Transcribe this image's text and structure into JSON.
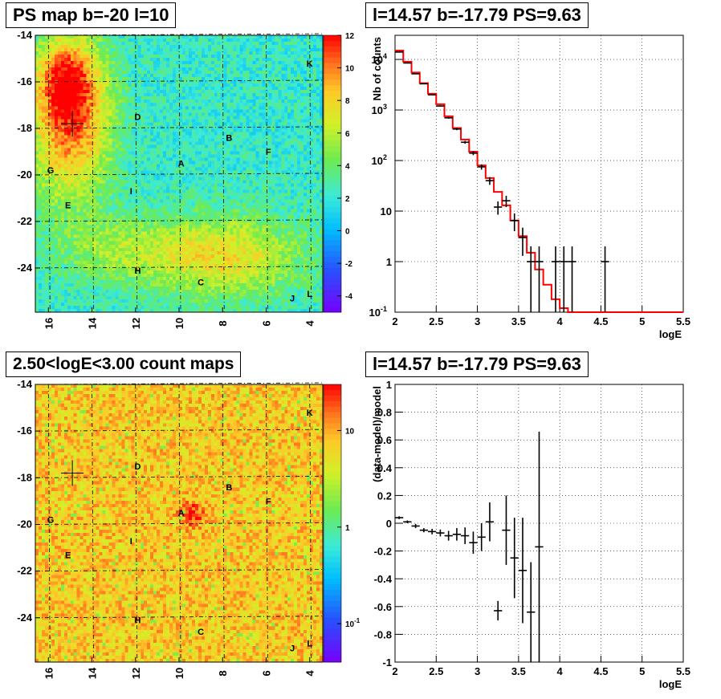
{
  "panels": {
    "ps_map_title": "PS map b=-20 l=10",
    "spectrum_title": "l=14.57 b=-17.79 PS=9.63",
    "count_map_title": "2.50<logE<3.00 count maps",
    "residual_title": "l=14.57 b=-17.79 PS=9.63"
  },
  "chart_data": [
    {
      "id": "ps_map",
      "type": "heatmap",
      "title": "PS map b=-20 l=10",
      "xlabel": "",
      "ylabel": "",
      "xlim": [
        16.6,
        3.4
      ],
      "ylim": [
        -25.9,
        -14
      ],
      "x_ticks": [
        16,
        14,
        12,
        10,
        8,
        6,
        4
      ],
      "y_ticks": [
        -14,
        -16,
        -18,
        -20,
        -22,
        -24
      ],
      "colorbar": {
        "range": [
          -5,
          12
        ],
        "ticks": [
          -4,
          -2,
          0,
          2,
          4,
          6,
          8,
          10,
          12
        ]
      },
      "marker": {
        "l": 14.9,
        "b": -17.8,
        "symbol": "+"
      },
      "labels": [
        {
          "text": "K",
          "l": 4.0,
          "b": -15.2
        },
        {
          "text": "D",
          "l": 11.9,
          "b": -17.5
        },
        {
          "text": "B",
          "l": 7.7,
          "b": -18.4
        },
        {
          "text": "F",
          "l": 5.9,
          "b": -19.0
        },
        {
          "text": "A",
          "l": 9.9,
          "b": -19.5
        },
        {
          "text": "G",
          "l": 15.9,
          "b": -19.8
        },
        {
          "text": "I",
          "l": 12.2,
          "b": -20.7
        },
        {
          "text": "E",
          "l": 15.1,
          "b": -21.3
        },
        {
          "text": "H",
          "l": 11.9,
          "b": -24.1
        },
        {
          "text": "C",
          "l": 9.0,
          "b": -24.6
        },
        {
          "text": "J",
          "l": 4.8,
          "b": -25.3
        },
        {
          "text": "L",
          "l": 4.0,
          "b": -25.1
        }
      ],
      "blobs": [
        {
          "l": 15.0,
          "b": -17.8,
          "value": 8.0,
          "sl": 1.3,
          "sb": 2.3
        },
        {
          "l": 15.2,
          "b": -15.8,
          "value": 5.5,
          "sl": 1.0,
          "sb": 1.2
        },
        {
          "l": 8.0,
          "b": -23.5,
          "value": 5.5,
          "sl": 2.6,
          "sb": 1.2
        },
        {
          "l": 13.0,
          "b": -23.2,
          "value": 2.5,
          "sl": 2.0,
          "sb": 1.0
        }
      ]
    },
    {
      "id": "spectrum",
      "type": "line",
      "title": "l=14.57 b=-17.79 PS=9.63",
      "xlabel": "logE",
      "ylabel": "Nb of counts",
      "xlim": [
        2,
        5.5
      ],
      "ylim": [
        0.1,
        30000
      ],
      "yscale": "log",
      "grid": true,
      "x_ticks": [
        2,
        2.5,
        3,
        3.5,
        4,
        4.5,
        5,
        5.5
      ],
      "y_ticks": [
        {
          "value": 0.1,
          "label": "10",
          "exp": "-1"
        },
        {
          "value": 1,
          "label": "1",
          "exp": ""
        },
        {
          "value": 10,
          "label": "10",
          "exp": ""
        },
        {
          "value": 100,
          "label": "10",
          "exp": "2"
        },
        {
          "value": 1000,
          "label": "10",
          "exp": "3"
        },
        {
          "value": 10000,
          "label": "10",
          "exp": "4"
        }
      ],
      "model": {
        "edges": [
          2,
          2.1,
          2.2,
          2.3,
          2.4,
          2.5,
          2.6,
          2.7,
          2.8,
          2.9,
          3.0,
          3.1,
          3.2,
          3.3,
          3.4,
          3.5,
          3.6,
          3.7,
          3.8,
          3.9,
          4.0,
          4.1,
          4.2,
          5.5
        ],
        "values": [
          15000,
          9000,
          5500,
          3400,
          2100,
          1300,
          750,
          440,
          260,
          150,
          80,
          45,
          24,
          13,
          6.5,
          3.2,
          1.5,
          0.7,
          0.35,
          0.18,
          0.12,
          0.1,
          0.1
        ]
      },
      "data": {
        "x": [
          2.05,
          2.15,
          2.25,
          2.35,
          2.45,
          2.55,
          2.65,
          2.75,
          2.85,
          2.95,
          3.05,
          3.15,
          3.25,
          3.35,
          3.45,
          3.55,
          3.65,
          3.75,
          3.95,
          4.05,
          4.15,
          4.55
        ],
        "y": [
          14000,
          8500,
          5200,
          3300,
          2000,
          1200,
          700,
          420,
          230,
          140,
          75,
          40,
          12,
          16,
          6.5,
          3,
          1,
          1,
          1,
          1,
          1,
          1
        ],
        "err_lo": [
          120,
          90,
          72,
          57,
          45,
          35,
          27,
          21,
          15,
          12,
          9,
          7,
          3.5,
          4,
          2.5,
          1.7,
          1,
          1,
          1,
          1,
          1,
          1
        ],
        "err_hi": [
          120,
          90,
          72,
          57,
          45,
          35,
          27,
          21,
          15,
          12,
          9,
          7,
          3.5,
          4,
          2.5,
          1.7,
          1,
          1,
          1,
          1,
          1,
          1
        ]
      }
    },
    {
      "id": "count_map",
      "type": "heatmap",
      "title": "2.50<logE<3.00 count maps",
      "xlabel": "",
      "ylabel": "",
      "xlim": [
        16.6,
        3.4
      ],
      "ylim": [
        -25.9,
        -14
      ],
      "x_ticks": [
        16,
        14,
        12,
        10,
        8,
        6,
        4
      ],
      "y_ticks": [
        -14,
        -16,
        -18,
        -20,
        -22,
        -24
      ],
      "colorbar": {
        "scale": "log",
        "range": [
          0.04,
          30
        ],
        "ticks": [
          {
            "value": 10,
            "label": "10",
            "exp": ""
          },
          {
            "value": 1,
            "label": "1",
            "exp": ""
          },
          {
            "value": 0.1,
            "label": "10",
            "exp": "-1"
          }
        ]
      },
      "marker": {
        "l": 14.9,
        "b": -17.8,
        "symbol": "+"
      },
      "labels": [
        {
          "text": "K",
          "l": 4.0,
          "b": -15.2
        },
        {
          "text": "D",
          "l": 11.9,
          "b": -17.5
        },
        {
          "text": "B",
          "l": 7.7,
          "b": -18.4
        },
        {
          "text": "F",
          "l": 5.9,
          "b": -19.0
        },
        {
          "text": "A",
          "l": 9.9,
          "b": -19.5
        },
        {
          "text": "G",
          "l": 15.9,
          "b": -19.8
        },
        {
          "text": "I",
          "l": 12.2,
          "b": -20.7
        },
        {
          "text": "E",
          "l": 15.1,
          "b": -21.3
        },
        {
          "text": "H",
          "l": 11.9,
          "b": -24.1
        },
        {
          "text": "C",
          "l": 9.0,
          "b": -24.6
        },
        {
          "text": "J",
          "l": 4.8,
          "b": -25.3
        },
        {
          "text": "L",
          "l": 4.0,
          "b": -25.1
        }
      ],
      "hotspot": {
        "l": 9.4,
        "b": -19.5,
        "value": 10
      }
    },
    {
      "id": "residuals",
      "type": "scatter",
      "title": "l=14.57 b=-17.79 PS=9.63",
      "xlabel": "logE",
      "ylabel": "(data-model)/model",
      "xlim": [
        2,
        5.5
      ],
      "ylim": [
        -1,
        1
      ],
      "grid": true,
      "x_ticks": [
        2,
        2.5,
        3,
        3.5,
        4,
        4.5,
        5,
        5.5
      ],
      "y_ticks": [
        -1,
        -0.8,
        -0.6,
        -0.4,
        -0.2,
        0,
        0.2,
        0.4,
        0.6,
        0.8,
        1
      ],
      "data": {
        "x": [
          2.05,
          2.15,
          2.25,
          2.35,
          2.45,
          2.55,
          2.65,
          2.75,
          2.85,
          2.95,
          3.05,
          3.15,
          3.25,
          3.35,
          3.45,
          3.55,
          3.65,
          3.75
        ],
        "y": [
          0.04,
          0.01,
          -0.02,
          -0.05,
          -0.06,
          -0.07,
          -0.09,
          -0.08,
          -0.09,
          -0.14,
          -0.1,
          0.01,
          -0.63,
          -0.05,
          -0.25,
          -0.34,
          -0.64,
          -0.17
        ],
        "err": [
          0.01,
          0.01,
          0.015,
          0.015,
          0.02,
          0.025,
          0.035,
          0.045,
          0.06,
          0.08,
          0.1,
          0.14,
          0.07,
          0.25,
          0.29,
          0.38,
          0.36,
          0.83
        ]
      }
    }
  ]
}
